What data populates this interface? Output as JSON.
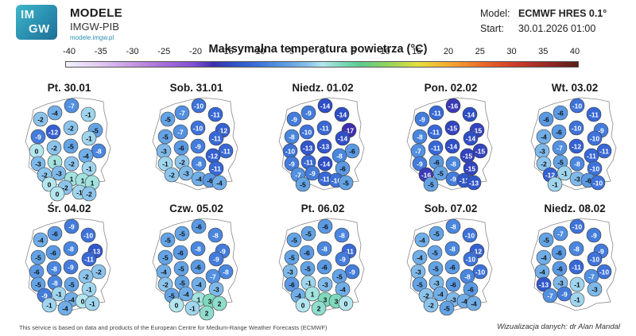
{
  "header": {
    "logo_text_1": "IM",
    "logo_text_2": "GW",
    "brand_title": "MODELE",
    "brand_subtitle": "IMGW-PIB",
    "brand_url": "modele.imgw.pl",
    "model_label": "Model:",
    "model_value": "ECMWF HRES 0.1°",
    "start_label": "Start:",
    "start_value": "30.01.2026 01:00"
  },
  "title": "Maksymalna temperatura powietrza (°C)",
  "colorbar": {
    "ticks": [
      "-40",
      "-35",
      "-30",
      "-25",
      "-20",
      "-15",
      "-10",
      "-5",
      "0",
      "5",
      "10",
      "15",
      "20",
      "25",
      "30",
      "35",
      "40"
    ],
    "min": -40,
    "max": 40
  },
  "panels": [
    {
      "title": "Pt. 30.01",
      "values": [
        -2,
        -4,
        -7,
        -1,
        -5,
        -9,
        -12,
        -2,
        -1,
        -8,
        0,
        -2,
        -5,
        -4,
        -3,
        1,
        -2,
        -1,
        -2,
        -3,
        1,
        1,
        1,
        0,
        -2,
        -1,
        0,
        -2
      ]
    },
    {
      "title": "Sob. 31.01",
      "values": [
        -5,
        -7,
        -10,
        -11,
        -12,
        -5,
        -7,
        -10,
        -11,
        -11,
        -3,
        -6,
        -9,
        -12,
        -1,
        -2,
        -8,
        -11,
        -2,
        -3,
        -4,
        -6,
        -4
      ]
    },
    {
      "title": "Niedz. 01.02",
      "values": [
        -9,
        -9,
        -14,
        -14,
        -17,
        -8,
        -10,
        -11,
        -14,
        -6,
        -10,
        -13,
        -13,
        -8,
        -9,
        -11,
        -14,
        -6,
        -7,
        -9,
        -11,
        -10,
        -5,
        -5
      ]
    },
    {
      "title": "Pon. 02.02",
      "values": [
        -9,
        -11,
        -16,
        -14,
        -15,
        -8,
        -11,
        -15,
        -14,
        -15,
        -7,
        -11,
        -14,
        -15,
        -9,
        -6,
        -8,
        -15,
        -16,
        -5,
        -9,
        -13,
        -13,
        -5
      ]
    },
    {
      "title": "Wt. 03.02",
      "values": [
        -6,
        -6,
        -10,
        -11,
        -9,
        -4,
        -6,
        -10,
        -10,
        -11,
        -3,
        -7,
        -12,
        -11,
        -2,
        -5,
        -8,
        -10,
        -12,
        -1,
        -3,
        -6,
        -10,
        -1
      ]
    },
    {
      "title": "Śr. 04.02",
      "values": [
        -4,
        -6,
        -9,
        -10,
        -13,
        -5,
        -6,
        -8,
        -11,
        -2,
        -6,
        -8,
        -9,
        -2,
        -5,
        -8,
        -5,
        -1,
        -9,
        -1,
        -4,
        0,
        -1,
        -1,
        -4
      ]
    },
    {
      "title": "Czw. 05.02",
      "values": [
        -5,
        -5,
        -6,
        -8,
        -9,
        -5,
        -6,
        -8,
        -9,
        -8,
        -4,
        -5,
        -6,
        -7,
        -2,
        -5,
        -4,
        -3,
        -5,
        -4,
        1,
        3,
        2,
        0,
        -1,
        2
      ]
    },
    {
      "title": "Pt. 06.02",
      "values": [
        -5,
        -5,
        -6,
        -8,
        -11,
        -5,
        -6,
        -8,
        -9,
        -9,
        -3,
        -5,
        -6,
        -5,
        -6,
        -1,
        -3,
        -4,
        -4,
        1,
        3,
        3,
        0,
        0,
        2
      ]
    },
    {
      "title": "Sob. 07.02",
      "values": [
        -4,
        -5,
        -8,
        -10,
        -12,
        -4,
        -5,
        -8,
        -10,
        -10,
        -3,
        -5,
        -6,
        -8,
        -5,
        -3,
        -6,
        -6,
        -2,
        -4,
        -3,
        -4,
        -4,
        -2,
        -5
      ]
    },
    {
      "title": "Niedz. 08.02",
      "values": [
        -5,
        -7,
        -10,
        -9,
        -9,
        -4,
        -6,
        -8,
        -10,
        -10,
        -4,
        -6,
        -11,
        -7,
        -13,
        -3,
        -1,
        -3,
        -7,
        -9,
        -1
      ]
    }
  ],
  "footer": {
    "source": "This service is based on data and products of the European Centre for Medium-Range Weather Forecasts (ECMWF)",
    "credit": "Wizualizacja danych: dr Alan Mandal"
  }
}
